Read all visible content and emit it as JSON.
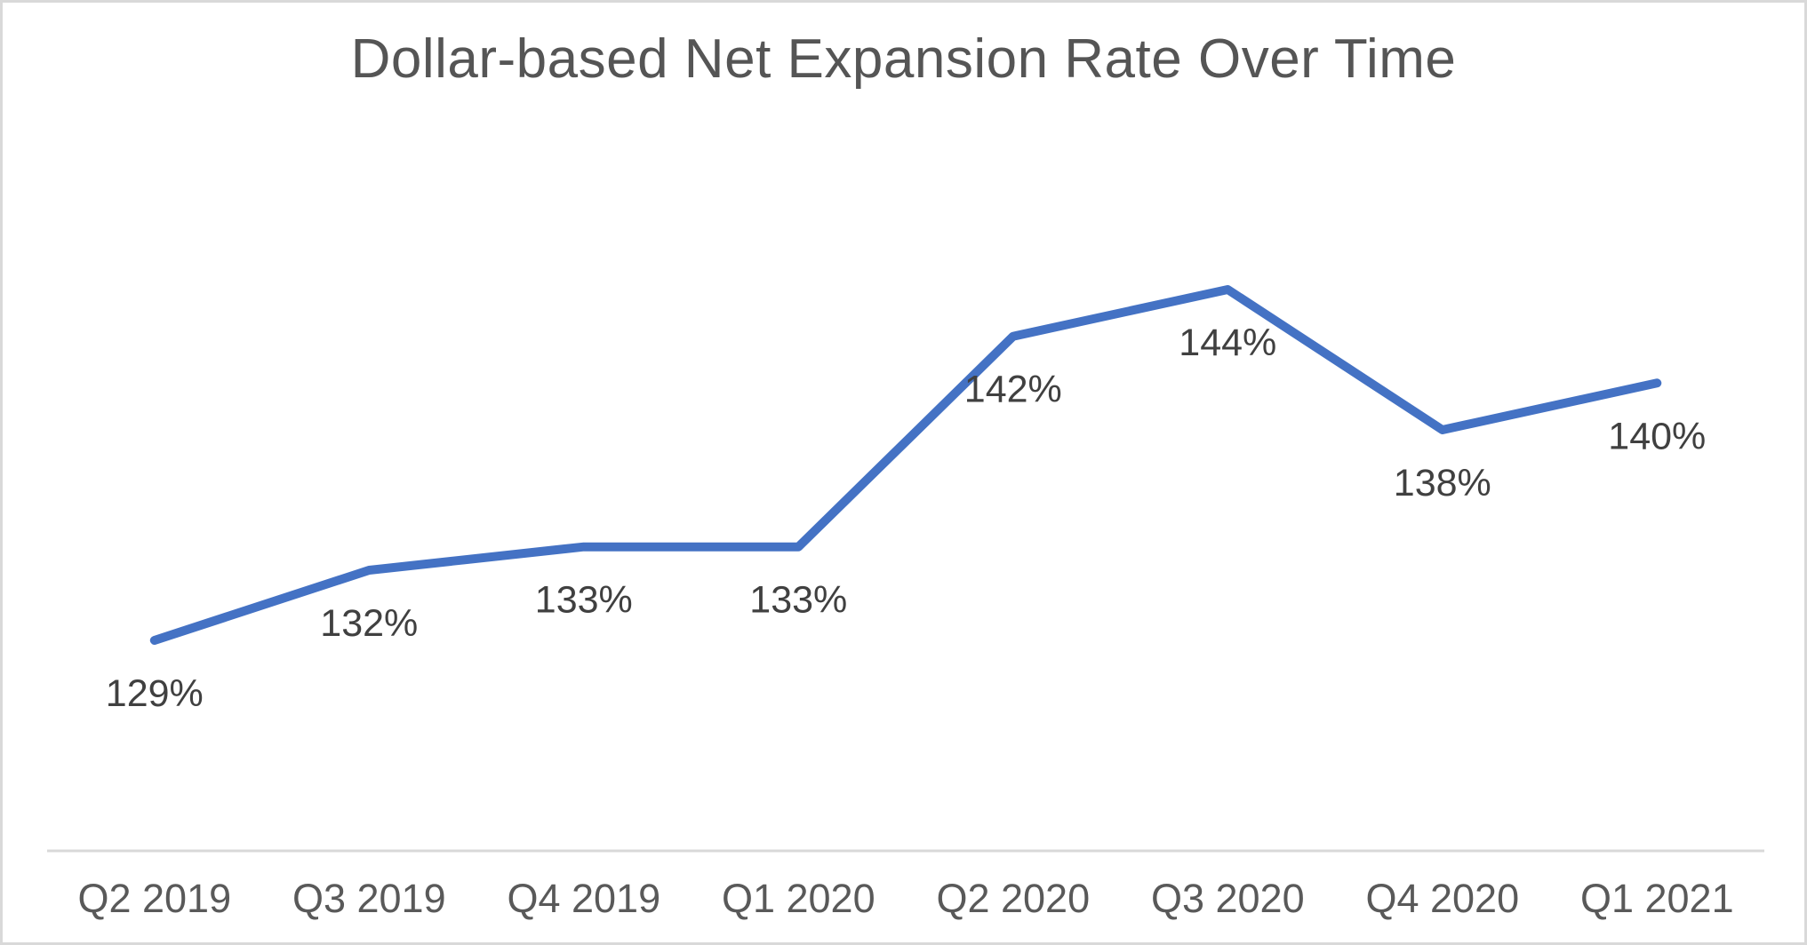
{
  "chart_data": {
    "type": "line",
    "title": "Dollar-based Net Expansion Rate Over Time",
    "categories": [
      "Q2 2019",
      "Q3 2019",
      "Q4 2019",
      "Q1 2020",
      "Q2 2020",
      "Q3 2020",
      "Q4 2020",
      "Q1 2021"
    ],
    "values": [
      129,
      132,
      133,
      133,
      142,
      144,
      138,
      140
    ],
    "data_labels": [
      "129%",
      "132%",
      "133%",
      "133%",
      "142%",
      "144%",
      "138%",
      "140%"
    ],
    "xlabel": "",
    "ylabel": "",
    "ylim": [
      120,
      150
    ],
    "grid": false,
    "legend_position": "none",
    "label_position": "below-point",
    "colors": {
      "series_line": "#4472c4",
      "axis_line": "#d9d9d9",
      "data_label_text": "#404040",
      "axis_tick_text": "#595959",
      "title_text": "#555555",
      "frame_border": "#d9d9d9",
      "background": "#ffffff"
    }
  }
}
